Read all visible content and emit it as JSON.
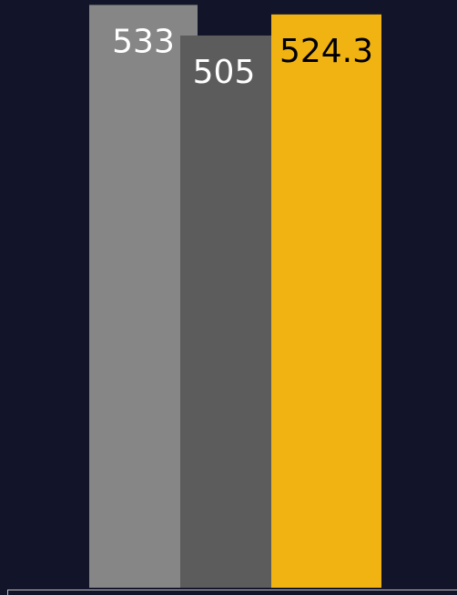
{
  "chart_data": {
    "type": "bar",
    "values": [
      533,
      505,
      524.3
    ],
    "colors": [
      "#868686",
      "#5c5c5c",
      "#f0b312"
    ],
    "label_colors": [
      "#ffffff",
      "#ffffff",
      "#000000"
    ],
    "ylim": [
      0,
      537.5
    ]
  }
}
